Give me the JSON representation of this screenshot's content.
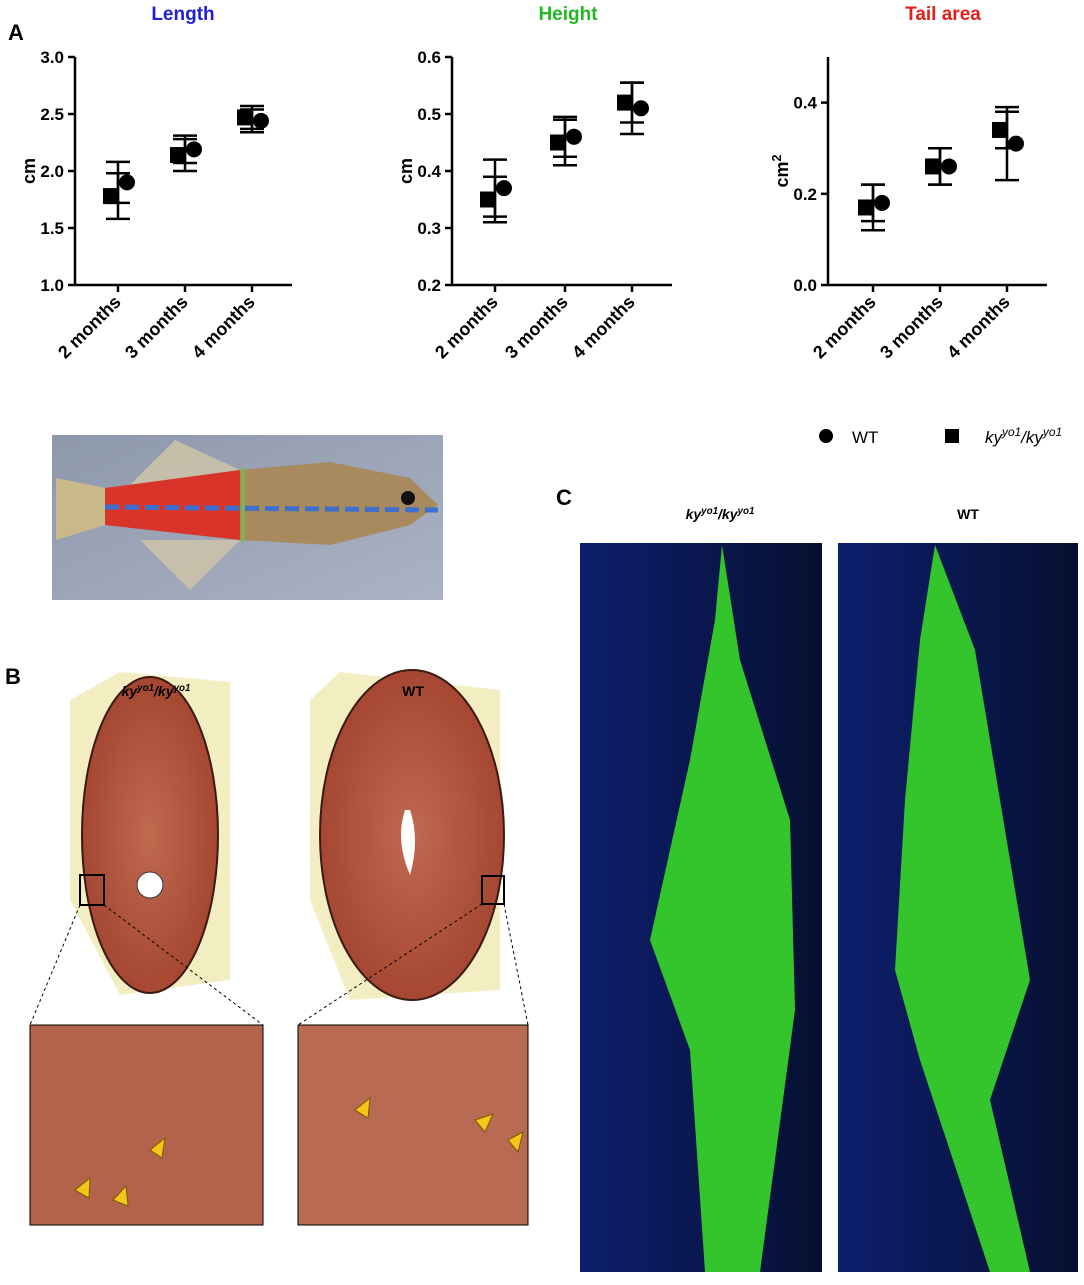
{
  "chart_data": [
    {
      "type": "scatter",
      "title": "Length",
      "title_color": "#1f1fd6",
      "ylabel": [
        "cm"
      ],
      "categories": [
        "2 months",
        "3 months",
        "4 months"
      ],
      "series": [
        {
          "marker": "circle",
          "color": "#000000",
          "values": [
            1.9,
            2.19,
            2.44
          ],
          "errors": [
            0.18,
            0.12,
            0.1
          ]
        },
        {
          "marker": "square",
          "color": "#000000",
          "values": [
            1.78,
            2.14,
            2.47
          ],
          "errors": [
            0.2,
            0.14,
            0.1
          ]
        }
      ],
      "ylim": [
        1.0,
        3.0
      ],
      "yticks": [
        {
          "value": 1.0,
          "label": "1.0"
        },
        1.5,
        {
          "value": 2.0,
          "label": "2.0"
        },
        2.5,
        {
          "value": 3.0,
          "label": "3.0"
        }
      ]
    },
    {
      "type": "scatter",
      "title": "Height",
      "title_color": "#22b822",
      "ylabel": [
        "cm"
      ],
      "categories": [
        "2 months",
        "3 months",
        "4 months"
      ],
      "series": [
        {
          "marker": "circle",
          "color": "#000000",
          "values": [
            0.37,
            0.46,
            0.51
          ],
          "errors": [
            0.05,
            0.035,
            0.045
          ]
        },
        {
          "marker": "square",
          "color": "#000000",
          "values": [
            0.35,
            0.45,
            0.52
          ],
          "errors": [
            0.04,
            0.04,
            0.035
          ]
        }
      ],
      "ylim": [
        0.2,
        0.6
      ],
      "yticks": [
        0.2,
        0.3,
        0.4,
        0.5,
        0.6
      ]
    },
    {
      "type": "scatter",
      "title": "Tail area",
      "title_color": "#e0201b",
      "ylabel": [
        "cm",
        "2"
      ],
      "categories": [
        "2 months",
        "3 months",
        "4 months"
      ],
      "series": [
        {
          "marker": "circle",
          "color": "#000000",
          "values": [
            0.18,
            0.26,
            0.31
          ],
          "errors": [
            0.04,
            0.04,
            0.08
          ]
        },
        {
          "marker": "square",
          "color": "#000000",
          "values": [
            0.17,
            0.26,
            0.34
          ],
          "errors": [
            0.05,
            0.04,
            0.04
          ]
        }
      ],
      "ylim": [
        0.0,
        0.5
      ],
      "yticks": [
        {
          "value": 0.0,
          "label": "0.0"
        },
        0.2,
        0.4
      ]
    }
  ],
  "legend": [
    {
      "marker": "circle",
      "label": [
        "WT"
      ]
    },
    {
      "marker": "square",
      "label": [
        "ky",
        "yo1",
        "/ky",
        "yo1"
      ]
    }
  ],
  "panels": {
    "a": "A",
    "b": "B",
    "c": "C"
  },
  "panel_b_captions": [
    [
      "ky",
      "yo1",
      "/ky",
      "yo1"
    ],
    [
      "WT"
    ]
  ],
  "panel_c_captions": [
    [
      "ky",
      "yo1",
      "/ky",
      "yo1"
    ],
    [
      "WT"
    ]
  ]
}
